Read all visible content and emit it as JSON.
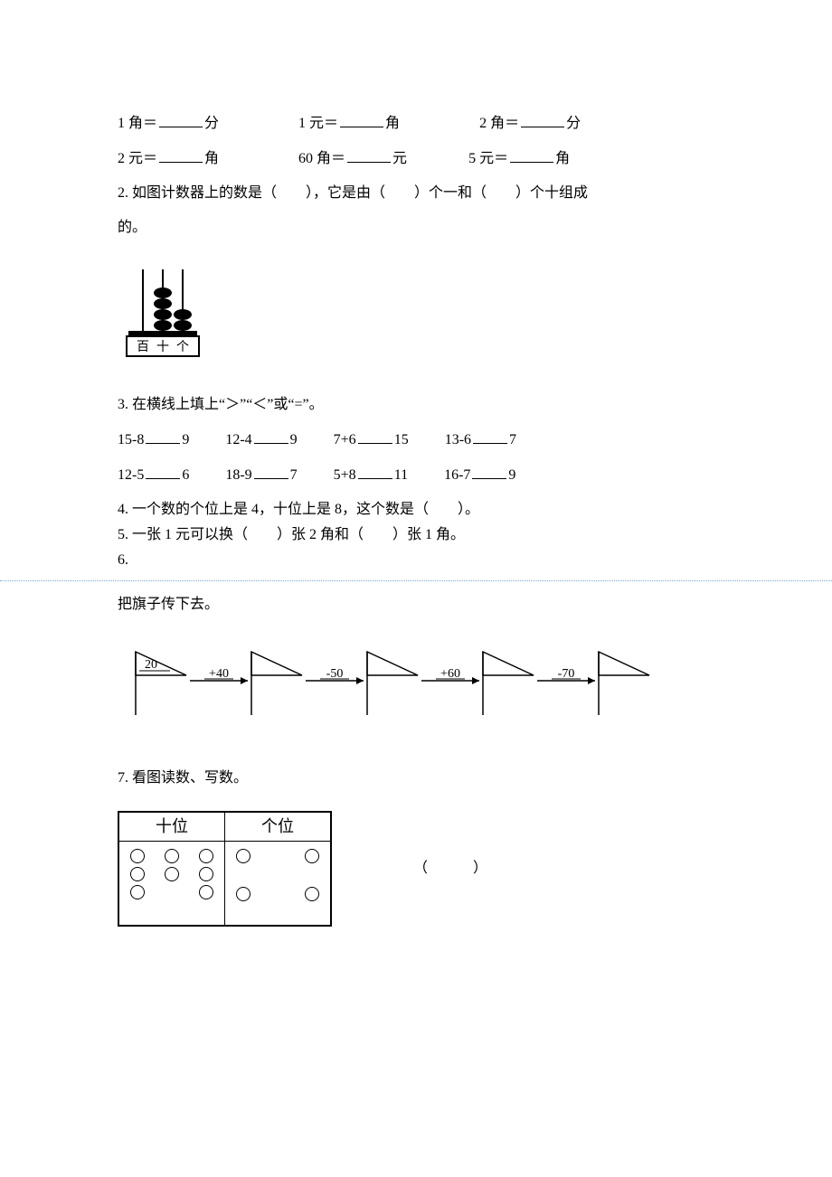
{
  "q1": {
    "items": [
      {
        "left": "1 角＝",
        "unit": "分"
      },
      {
        "left": "1 元＝",
        "unit": "角"
      },
      {
        "left": "2 角＝",
        "unit": "分"
      },
      {
        "left": "2 元＝",
        "unit": "角"
      },
      {
        "left": "60 角＝",
        "unit": "元"
      },
      {
        "left": "5 元＝",
        "unit": "角"
      }
    ]
  },
  "q2": {
    "text_a": "2. 如图计数器上的数是（　　），它是由（　　）个一和（　　）个十组成",
    "text_b": "的。",
    "abacus": {
      "labels": [
        "百",
        "十",
        "个"
      ],
      "beads": [
        0,
        4,
        2
      ],
      "colors": {
        "stroke": "#000000",
        "fill": "#000000",
        "bg": "#ffffff"
      }
    }
  },
  "q3": {
    "title": "3. 在横线上填上“＞”“＜”或“=”。",
    "rows": [
      [
        {
          "l": "15-8",
          "r": "9"
        },
        {
          "l": "12-4",
          "r": "9"
        },
        {
          "l": "7+6",
          "r": "15"
        },
        {
          "l": "13-6",
          "r": "7"
        }
      ],
      [
        {
          "l": "12-5",
          "r": "6"
        },
        {
          "l": "18-9",
          "r": "7"
        },
        {
          "l": "5+8",
          "r": "11"
        },
        {
          "l": "16-7",
          "r": "9"
        }
      ]
    ]
  },
  "q4": {
    "text": "4. 一个数的个位上是 4，十位上是 8，这个数是（　　）。"
  },
  "q5": {
    "text": "5. 一张 1 元可以换（　　）张 2 角和（　　）张 1 角。"
  },
  "q6": {
    "label": "6.",
    "title": "把旗子传下去。",
    "start": "20",
    "ops": [
      "+40",
      "-50",
      "+60",
      "-70"
    ]
  },
  "q7": {
    "title": "7. 看图读数、写数。",
    "headers": [
      "十位",
      "个位"
    ],
    "tens_rows": [
      3,
      3,
      2
    ],
    "ones_rows": [
      2,
      0,
      2
    ],
    "paren": "（　　）"
  }
}
